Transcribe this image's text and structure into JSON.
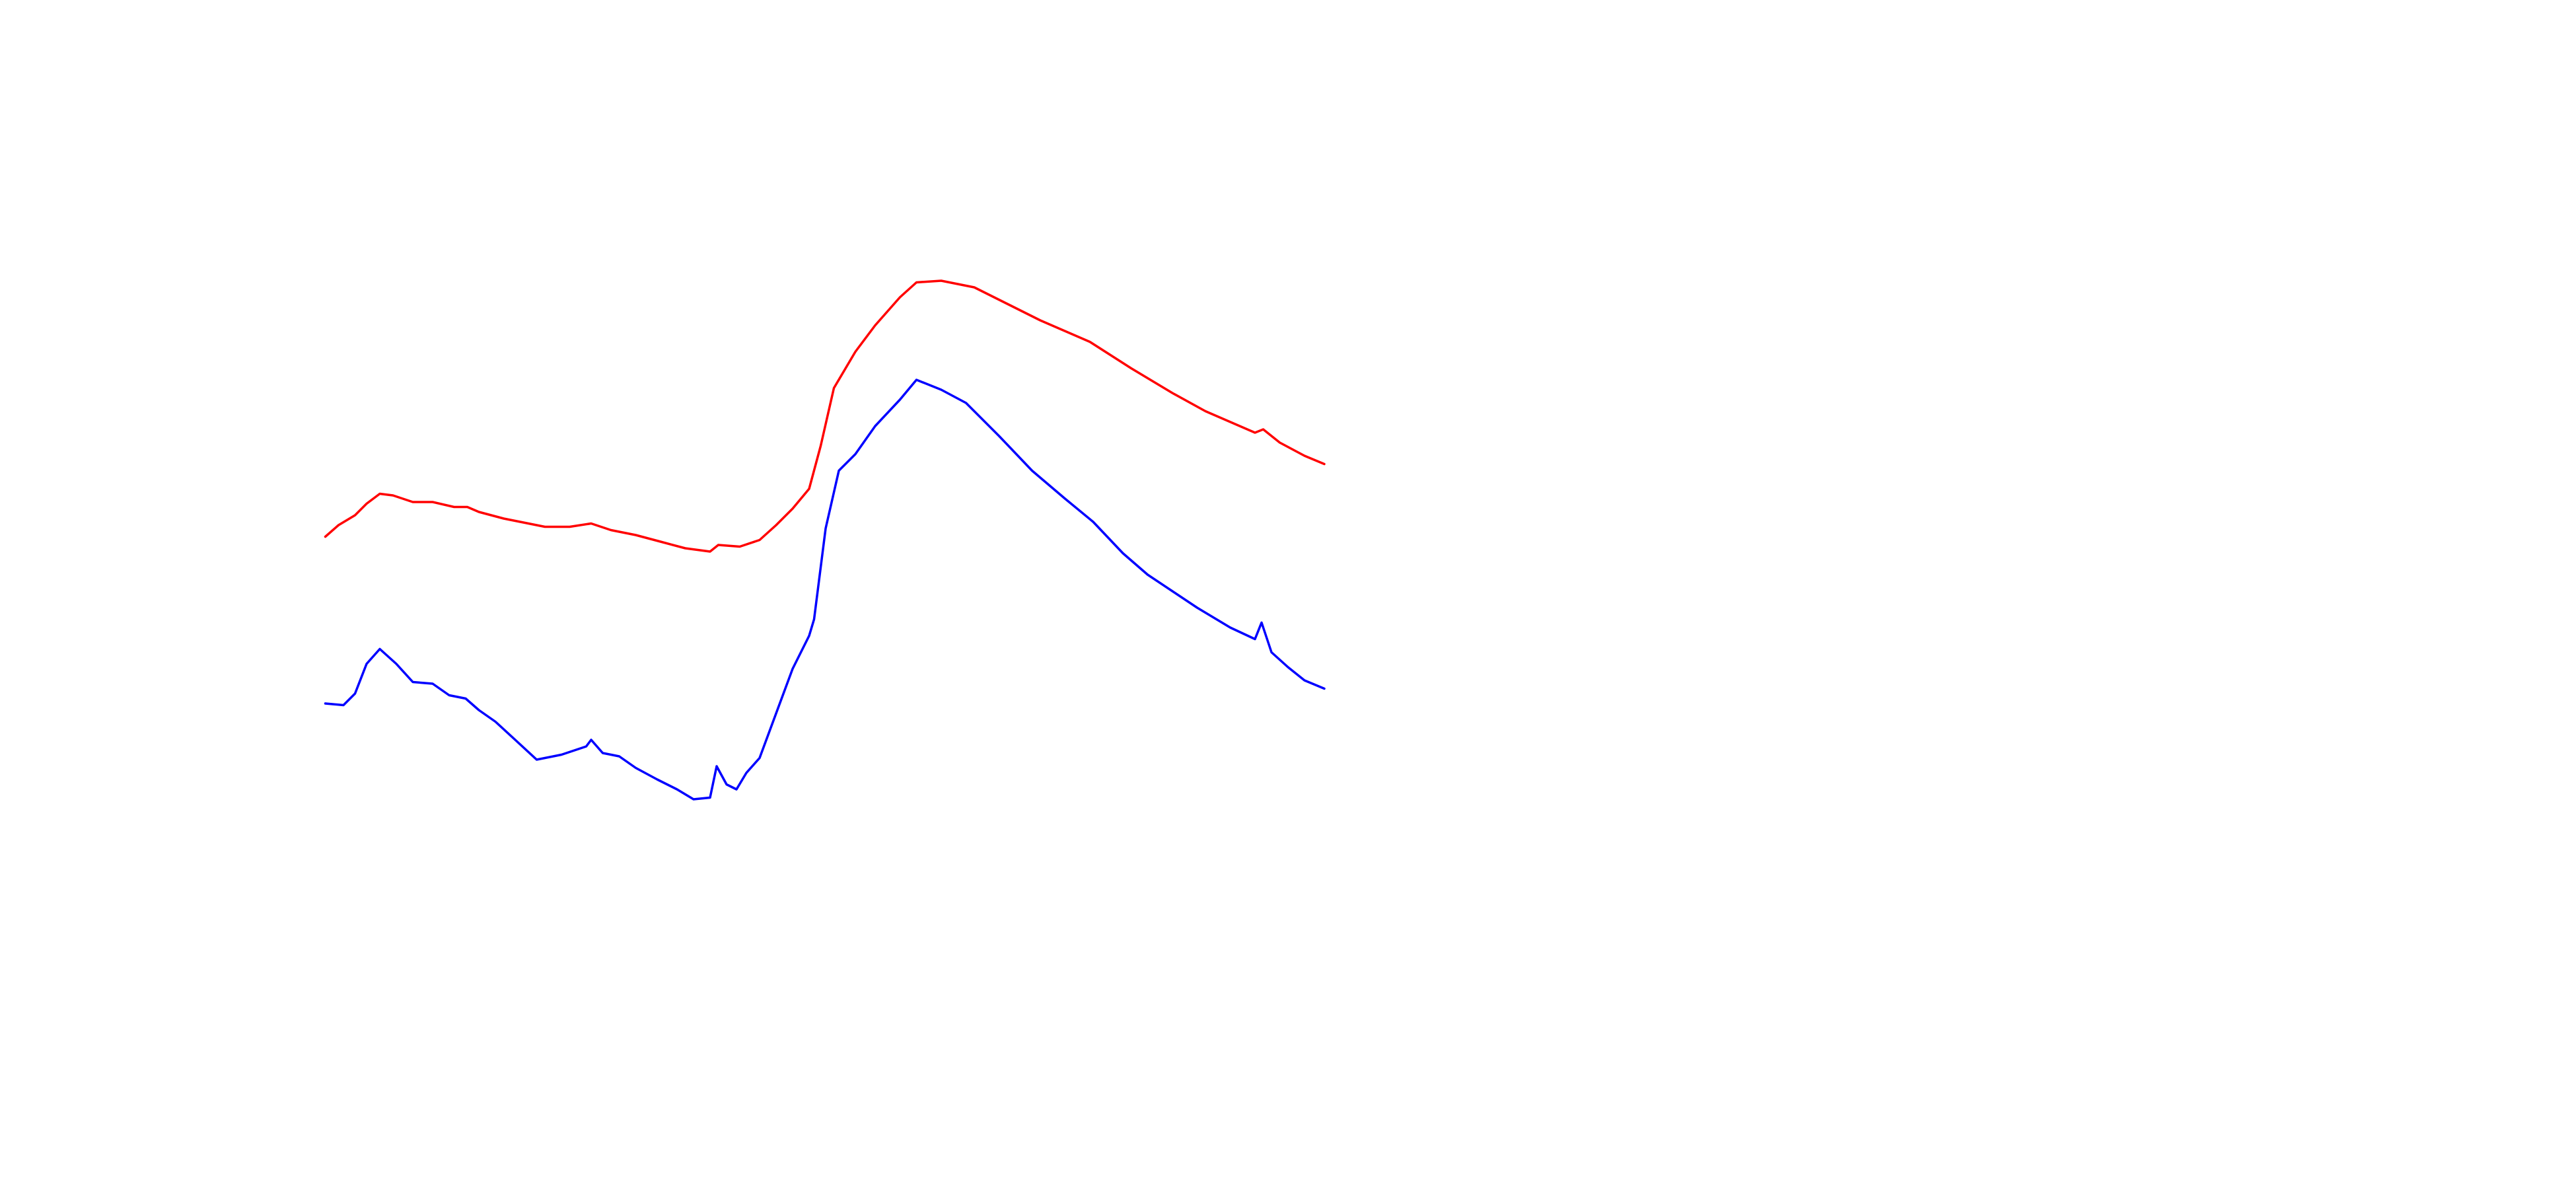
{
  "chart_data": {
    "type": "line",
    "xlim": [
      0,
      605
    ],
    "ylim": [
      0,
      72
    ],
    "series": [
      {
        "color": "#ff0000",
        "x": [
          0,
          8,
          18,
          25,
          33,
          41,
          53,
          65,
          78,
          86,
          93,
          108,
          118,
          133,
          148,
          161,
          173,
          188,
          203,
          218,
          233,
          238,
          251,
          263,
          273,
          283,
          293,
          300,
          308,
          321,
          333,
          348,
          358,
          373,
          393,
          413,
          433,
          463,
          488,
          513,
          533,
          563,
          568,
          578,
          593,
          605
        ],
        "values": [
          39.5,
          40.2,
          40.8,
          41.5,
          42.1,
          42.0,
          41.6,
          41.6,
          41.3,
          41.3,
          41.0,
          40.6,
          40.4,
          40.1,
          40.1,
          40.3,
          39.9,
          39.6,
          39.2,
          38.8,
          38.6,
          39.0,
          38.9,
          39.3,
          40.2,
          41.2,
          42.4,
          45.0,
          48.5,
          50.7,
          52.3,
          54.0,
          54.9,
          55.0,
          54.6,
          53.6,
          52.6,
          51.3,
          49.7,
          48.2,
          47.1,
          45.8,
          46.0,
          45.2,
          44.4,
          43.9
        ]
      },
      {
        "color": "#0000ff",
        "x": [
          0,
          11,
          18,
          25,
          33,
          43,
          53,
          65,
          75,
          85,
          93,
          103,
          115,
          128,
          143,
          158,
          161,
          168,
          178,
          188,
          201,
          213,
          223,
          233,
          237,
          243,
          249,
          255,
          263,
          273,
          283,
          293,
          296,
          303,
          311,
          321,
          333,
          348,
          358,
          373,
          388,
          408,
          428,
          448,
          465,
          483,
          498,
          513,
          528,
          548,
          563,
          567,
          573,
          583,
          593,
          605
        ],
        "values": [
          29.4,
          29.3,
          30.0,
          31.8,
          32.7,
          31.8,
          30.7,
          30.6,
          29.9,
          29.7,
          29.0,
          28.3,
          27.2,
          26.0,
          26.3,
          26.8,
          27.2,
          26.4,
          26.2,
          25.5,
          24.8,
          24.2,
          23.6,
          23.7,
          25.6,
          24.5,
          24.2,
          25.2,
          26.1,
          28.8,
          31.5,
          33.5,
          34.5,
          40.0,
          43.5,
          44.5,
          46.2,
          47.8,
          49.0,
          48.4,
          47.6,
          45.6,
          43.5,
          41.8,
          40.4,
          38.5,
          37.2,
          36.2,
          35.2,
          34.0,
          33.3,
          34.3,
          32.5,
          31.6,
          30.8,
          30.3
        ]
      }
    ]
  }
}
